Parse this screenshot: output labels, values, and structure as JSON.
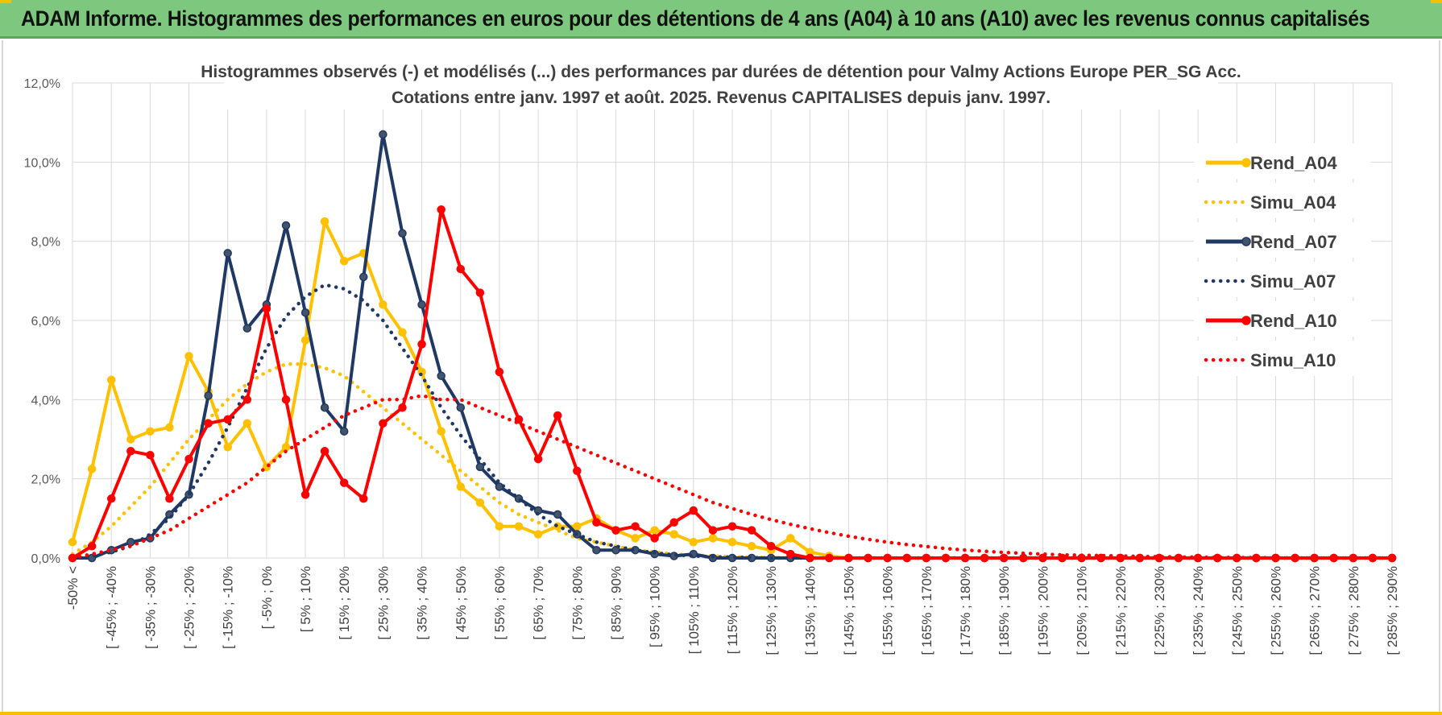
{
  "header": {
    "title": "ADAM Informe. Histogrammes des performances en euros pour des détentions de 4 ans (A04) à 10 ans (A10) avec les revenus connus capitalisés"
  },
  "colors": {
    "header_bg": "#7ec77e",
    "gold": "#ffc000",
    "navy": "#1f3864",
    "red": "#ff0000",
    "grid": "#d9d9d9"
  },
  "chart_data": {
    "type": "line",
    "title_line1": "Histogrammes observés (-) et modélisés (...) des performances par durées de détention pour Valmy Actions Europe PER_SG Acc.",
    "title_line2": "Cotations entre janv. 1997 et août. 2025. Revenus CAPITALISES depuis janv. 1997.",
    "ylim": [
      0,
      0.12
    ],
    "yticks": [
      "0,0%",
      "2,0%",
      "4,0%",
      "6,0%",
      "8,0%",
      "10,0%",
      "12,0%"
    ],
    "x_count": 69,
    "x_tick_labels": [
      "-50% <",
      "[ -45% ; -40%",
      "[ -35% ; -30%",
      "[ -25% ; -20%",
      "[ -15% ; -10%",
      "[ -5% ; 0%",
      "[ 5% ; 10%",
      "[ 15% ; 20%",
      "[ 25% ; 30%",
      "[ 35% ; 40%",
      "[ 45% ; 50%",
      "[ 55% ; 60%",
      "[ 65% ; 70%",
      "[ 75% ; 80%",
      "[ 85% ; 90%",
      "[ 95% ; 100%",
      "[ 105% ; 110%",
      "[ 115% ; 120%",
      "[ 125% ; 130%",
      "[ 135% ; 140%",
      "[ 145% ; 150%",
      "[ 155% ; 160%",
      "[ 165% ; 170%",
      "[ 175% ; 180%",
      "[ 185% ; 190%",
      "[ 195% ; 200%",
      "[ 205% ; 210%",
      "[ 215% ; 220%",
      "[ 225% ; 230%",
      "[ 235% ; 240%",
      "[ 245% ; 250%",
      "[ 255% ; 260%",
      "[ 265% ; 270%",
      "[ 275% ; 280%",
      "[ 285% ; 290%"
    ],
    "legend_position": "right",
    "series": [
      {
        "name": "Rend_A04",
        "style": "solid",
        "color": "#ffc000",
        "values": [
          0.004,
          0.0225,
          0.045,
          0.03,
          0.032,
          0.033,
          0.051,
          0.042,
          0.028,
          0.034,
          0.023,
          0.028,
          0.055,
          0.085,
          0.075,
          0.077,
          0.064,
          0.057,
          0.047,
          0.032,
          0.018,
          0.014,
          0.008,
          0.008,
          0.006,
          0.008,
          0.008,
          0.01,
          0.007,
          0.005,
          0.007,
          0.006,
          0.004,
          0.005,
          0.004,
          0.003,
          0.002,
          0.005,
          0.0015,
          0.0005,
          0,
          0,
          0,
          0,
          0,
          0,
          0,
          0,
          0,
          0,
          0,
          0,
          0,
          0,
          0,
          0,
          0,
          0,
          0,
          0,
          0,
          0,
          0,
          0,
          0,
          0,
          0,
          0,
          0
        ]
      },
      {
        "name": "Simu_A04",
        "style": "dotted",
        "color": "#ffc000",
        "values": [
          0.001,
          0.004,
          0.008,
          0.013,
          0.018,
          0.024,
          0.03,
          0.035,
          0.04,
          0.044,
          0.047,
          0.049,
          0.049,
          0.048,
          0.046,
          0.042,
          0.038,
          0.034,
          0.03,
          0.026,
          0.022,
          0.018,
          0.014,
          0.011,
          0.009,
          0.007,
          0.005,
          0.004,
          0.003,
          0.002,
          0.0015,
          0.001,
          0.0007,
          0.0005,
          0.0003,
          0.0002,
          0.0001,
          0,
          0,
          0,
          0,
          0,
          0,
          0,
          0,
          0,
          0,
          0,
          0,
          0,
          0,
          0,
          0,
          0,
          0,
          0,
          0,
          0,
          0,
          0,
          0,
          0,
          0,
          0,
          0,
          0,
          0,
          0,
          0
        ]
      },
      {
        "name": "Rend_A07",
        "style": "solid",
        "color": "#1f3864",
        "values": [
          0,
          0,
          0.002,
          0.004,
          0.005,
          0.011,
          0.016,
          0.041,
          0.077,
          0.058,
          0.064,
          0.084,
          0.062,
          0.038,
          0.032,
          0.071,
          0.107,
          0.082,
          0.064,
          0.046,
          0.038,
          0.023,
          0.018,
          0.015,
          0.012,
          0.011,
          0.006,
          0.002,
          0.002,
          0.002,
          0.001,
          0.0005,
          0.001,
          0,
          0,
          0,
          0,
          0,
          0,
          0,
          0,
          0,
          0,
          0,
          0,
          0,
          0,
          0,
          0,
          0,
          0,
          0,
          0,
          0,
          0,
          0,
          0,
          0,
          0,
          0,
          0,
          0,
          0,
          0,
          0,
          0,
          0,
          0,
          0
        ]
      },
      {
        "name": "Simu_A07",
        "style": "dotted",
        "color": "#1f3864",
        "values": [
          0,
          0.0005,
          0.0015,
          0.003,
          0.006,
          0.01,
          0.016,
          0.024,
          0.033,
          0.043,
          0.053,
          0.061,
          0.066,
          0.069,
          0.068,
          0.065,
          0.06,
          0.053,
          0.046,
          0.038,
          0.031,
          0.025,
          0.019,
          0.015,
          0.011,
          0.008,
          0.006,
          0.004,
          0.003,
          0.002,
          0.0013,
          0.0008,
          0.0005,
          0.0003,
          0.0002,
          0.0001,
          0,
          0,
          0,
          0,
          0,
          0,
          0,
          0,
          0,
          0,
          0,
          0,
          0,
          0,
          0,
          0,
          0,
          0,
          0,
          0,
          0,
          0,
          0,
          0,
          0,
          0,
          0,
          0,
          0,
          0,
          0,
          0,
          0
        ]
      },
      {
        "name": "Rend_A10",
        "style": "solid",
        "color": "#ff0000",
        "values": [
          0,
          0.003,
          0.015,
          0.027,
          0.026,
          0.015,
          0.025,
          0.034,
          0.035,
          0.04,
          0.063,
          0.04,
          0.016,
          0.027,
          0.019,
          0.015,
          0.034,
          0.038,
          0.054,
          0.088,
          0.073,
          0.067,
          0.047,
          0.035,
          0.025,
          0.036,
          0.022,
          0.009,
          0.007,
          0.008,
          0.005,
          0.009,
          0.012,
          0.007,
          0.008,
          0.007,
          0.003,
          0.001,
          0,
          0,
          0,
          0,
          0,
          0,
          0,
          0,
          0,
          0,
          0,
          0,
          0,
          0,
          0,
          0,
          0,
          0,
          0,
          0,
          0,
          0,
          0,
          0,
          0,
          0,
          0,
          0,
          0,
          0,
          0
        ]
      },
      {
        "name": "Simu_A10",
        "style": "dotted",
        "color": "#ff0000",
        "values": [
          0,
          0.001,
          0.002,
          0.003,
          0.005,
          0.007,
          0.01,
          0.013,
          0.016,
          0.019,
          0.023,
          0.027,
          0.03,
          0.033,
          0.036,
          0.038,
          0.04,
          0.04,
          0.041,
          0.04,
          0.04,
          0.038,
          0.036,
          0.034,
          0.032,
          0.03,
          0.028,
          0.026,
          0.024,
          0.022,
          0.02,
          0.018,
          0.016,
          0.014,
          0.0125,
          0.011,
          0.0097,
          0.0085,
          0.0074,
          0.0064,
          0.0055,
          0.0047,
          0.004,
          0.0034,
          0.0029,
          0.0024,
          0.002,
          0.0017,
          0.0014,
          0.0012,
          0.001,
          0.0008,
          0.0007,
          0.0006,
          0.0005,
          0.0004,
          0.0003,
          0.00025,
          0.0002,
          0.00015,
          0.0001,
          0.0001,
          5e-05,
          0,
          0,
          0,
          0,
          0,
          0
        ]
      }
    ]
  }
}
